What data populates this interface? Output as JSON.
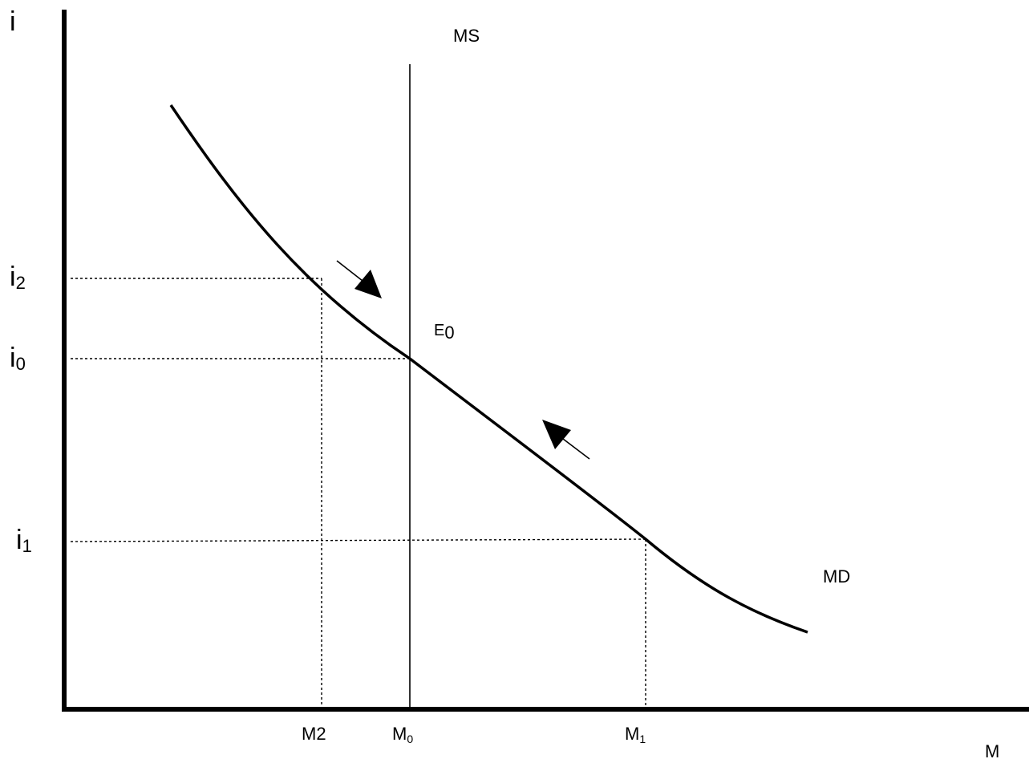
{
  "axes": {
    "y_label": "i",
    "x_label": "M"
  },
  "curves": {
    "supply_label": "MS",
    "demand_label": "MD"
  },
  "equilibrium": {
    "base": "E",
    "sub": "0"
  },
  "y_ticks": [
    {
      "base": "i",
      "sub": "2"
    },
    {
      "base": "i",
      "sub": "0"
    },
    {
      "base": "i",
      "sub": "1"
    }
  ],
  "x_ticks": [
    {
      "base": "M2",
      "sub": ""
    },
    {
      "base": "M",
      "sub": "0"
    },
    {
      "base": "M",
      "sub": "1"
    }
  ]
}
